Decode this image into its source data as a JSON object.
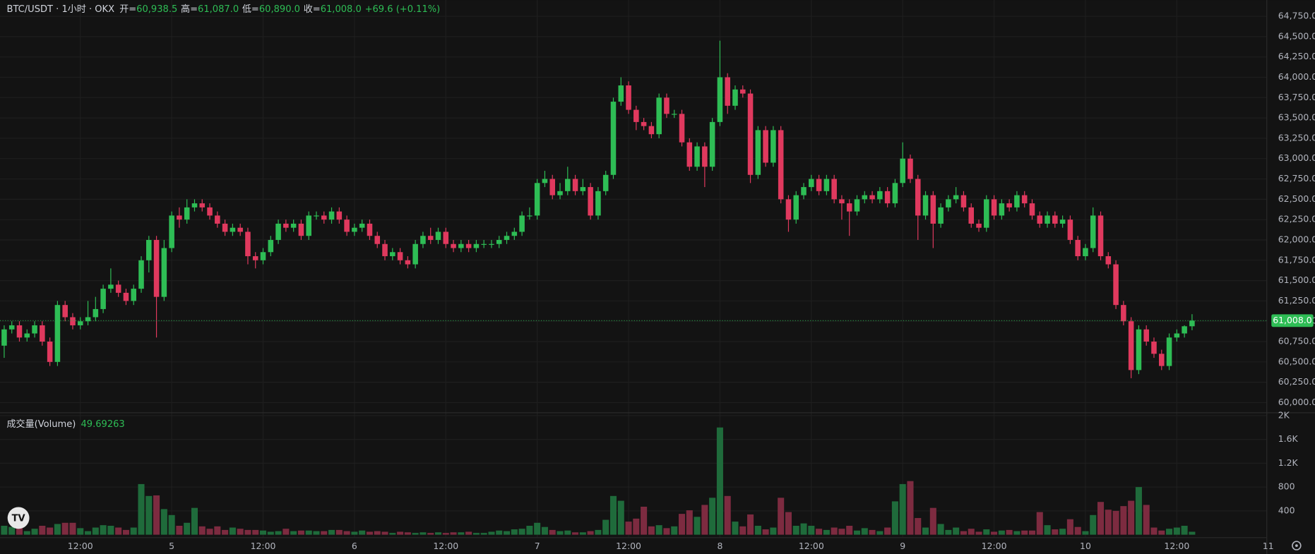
{
  "chart_data": {
    "type": "candlestick",
    "title": "BTC/USDT · 1小时 · OKX",
    "ohlc_legend": [
      {
        "label": "开=",
        "value": "60,938.5"
      },
      {
        "label": "高=",
        "value": "61,087.0"
      },
      {
        "label": "低=",
        "value": "60,890.0"
      },
      {
        "label": "收=",
        "value": "61,008.0"
      }
    ],
    "change": "+69.6 (+0.11%)",
    "last_price_label": "61,008.0",
    "up_color": "#2ebd55",
    "down_color": "#e0395e",
    "volume_up_color": "#1f6b3b",
    "volume_down_color": "#7d2b40",
    "grid": true,
    "xlim": [
      -0.55,
      166.2
    ],
    "xticks": [
      {
        "value": 10,
        "label": "12:00"
      },
      {
        "value": 22,
        "label": "5"
      },
      {
        "value": 34,
        "label": "12:00"
      },
      {
        "value": 46,
        "label": "6"
      },
      {
        "value": 58,
        "label": "12:00"
      },
      {
        "value": 70,
        "label": "7"
      },
      {
        "value": 82,
        "label": "12:00"
      },
      {
        "value": 94,
        "label": "8"
      },
      {
        "value": 106,
        "label": "12:00"
      },
      {
        "value": 118,
        "label": "9"
      },
      {
        "value": 130,
        "label": "12:00"
      },
      {
        "value": 142,
        "label": "10"
      },
      {
        "value": 154,
        "label": "12:00"
      },
      {
        "value": 166,
        "label": "11"
      }
    ],
    "ylim": [
      59880,
      64950
    ],
    "yticks": [
      {
        "value": 60000,
        "label": "60,000.0"
      },
      {
        "value": 60250,
        "label": "60,250.0"
      },
      {
        "value": 60500,
        "label": "60,500.0"
      },
      {
        "value": 60750,
        "label": "60,750.0"
      },
      {
        "value": 61000,
        "label": "61,000.0"
      },
      {
        "value": 61250,
        "label": "61,250.0"
      },
      {
        "value": 61500,
        "label": "61,500.0"
      },
      {
        "value": 61750,
        "label": "61,750.0"
      },
      {
        "value": 62000,
        "label": "62,000.0"
      },
      {
        "value": 62250,
        "label": "62,250.0"
      },
      {
        "value": 62500,
        "label": "62,500.0"
      },
      {
        "value": 62750,
        "label": "62,750.0"
      },
      {
        "value": 63000,
        "label": "63,000.0"
      },
      {
        "value": 63250,
        "label": "63,250.0"
      },
      {
        "value": 63500,
        "label": "63,500.0"
      },
      {
        "value": 63750,
        "label": "63,750.0"
      },
      {
        "value": 64000,
        "label": "64,000.0"
      },
      {
        "value": 64250,
        "label": "64,250.0"
      },
      {
        "value": 64500,
        "label": "64,500.0"
      },
      {
        "value": 64750,
        "label": "64,750.0"
      }
    ],
    "open": [
      60700,
      60900,
      60950,
      60800,
      60850,
      60950,
      60750,
      60500,
      61200,
      61050,
      60950,
      61000,
      61050,
      61150,
      61400,
      61450,
      61350,
      61250,
      61400,
      61750,
      62000,
      61300,
      61900,
      62300,
      62250,
      62400,
      62450,
      62400,
      62300,
      62200,
      62100,
      62150,
      62100,
      61800,
      61750,
      61850,
      62000,
      62200,
      62150,
      62200,
      62050,
      62300,
      62300,
      62250,
      62350,
      62250,
      62100,
      62150,
      62200,
      62050,
      61950,
      61800,
      61850,
      61750,
      61700,
      61950,
      62050,
      62000,
      62100,
      61950,
      61900,
      61950,
      61900,
      61950,
      61950,
      61950,
      62000,
      62050,
      62100,
      62300,
      62300,
      62700,
      62750,
      62550,
      62600,
      62750,
      62600,
      62650,
      62300,
      62600,
      62800,
      63700,
      63900,
      63600,
      63450,
      63400,
      63300,
      63750,
      63550,
      63550,
      63200,
      62900,
      63150,
      62900,
      63450,
      64000,
      63650,
      63850,
      63800,
      62800,
      63350,
      62950,
      63350,
      62500,
      62250,
      62550,
      62650,
      62750,
      62600,
      62750,
      62500,
      62450,
      62350,
      62500,
      62550,
      62500,
      62600,
      62450,
      62700,
      63000,
      62750,
      62300,
      62550,
      62200,
      62400,
      62500,
      62550,
      62400,
      62200,
      62150,
      62500,
      62300,
      62450,
      62400,
      62550,
      62450,
      62300,
      62200,
      62300,
      62200,
      62250,
      62000,
      61800,
      61900,
      62300,
      61800,
      61700,
      61200,
      61000,
      60400,
      60900,
      60750,
      60600,
      60450,
      60800,
      60850,
      60938.5
    ],
    "high": [
      60950,
      61000,
      61000,
      60900,
      61000,
      61000,
      60800,
      61250,
      61250,
      61100,
      61050,
      61250,
      61300,
      61450,
      61650,
      61500,
      61400,
      61450,
      61800,
      62050,
      62050,
      62000,
      62350,
      62400,
      62500,
      62500,
      62500,
      62450,
      62350,
      62250,
      62200,
      62200,
      62150,
      61850,
      61900,
      62050,
      62250,
      62250,
      62250,
      62250,
      62350,
      62350,
      62350,
      62400,
      62400,
      62300,
      62200,
      62250,
      62250,
      62100,
      62000,
      61900,
      61900,
      61800,
      62000,
      62100,
      62150,
      62150,
      62150,
      62000,
      62000,
      62000,
      62000,
      62000,
      62000,
      62050,
      62100,
      62150,
      62350,
      62400,
      62750,
      62850,
      62800,
      62700,
      62900,
      62800,
      62750,
      62700,
      62650,
      62850,
      63750,
      64000,
      63950,
      63650,
      63500,
      63450,
      63800,
      63800,
      63600,
      63600,
      63250,
      63200,
      63200,
      63500,
      64450,
      64050,
      63900,
      63900,
      63850,
      63400,
      63400,
      63400,
      63400,
      62550,
      62600,
      62700,
      62800,
      62800,
      62800,
      62800,
      62550,
      62500,
      62550,
      62600,
      62600,
      62650,
      62650,
      62750,
      63200,
      63050,
      62800,
      62600,
      62600,
      62450,
      62550,
      62650,
      62600,
      62450,
      62250,
      62550,
      62550,
      62500,
      62500,
      62600,
      62600,
      62500,
      62350,
      62350,
      62350,
      62300,
      62300,
      62050,
      61950,
      62400,
      62350,
      61850,
      61750,
      61250,
      61050,
      60950,
      60950,
      60800,
      60650,
      60850,
      60900,
      60950,
      61087
    ],
    "low": [
      60550,
      60850,
      60750,
      60750,
      60800,
      60700,
      60450,
      60450,
      61000,
      60900,
      60900,
      60950,
      61000,
      61100,
      61350,
      61300,
      61200,
      61200,
      61350,
      61600,
      60800,
      61250,
      61850,
      62150,
      62200,
      62350,
      62350,
      62250,
      62150,
      62050,
      62050,
      62050,
      61700,
      61650,
      61700,
      61800,
      61950,
      62100,
      62100,
      62000,
      62000,
      62250,
      62200,
      62200,
      62200,
      62050,
      62050,
      62100,
      62000,
      61900,
      61750,
      61750,
      61700,
      61650,
      61650,
      61900,
      61950,
      61950,
      61900,
      61850,
      61850,
      61850,
      61850,
      61900,
      61900,
      61900,
      61950,
      62000,
      62050,
      62250,
      62250,
      62650,
      62500,
      62500,
      62550,
      62550,
      62550,
      62250,
      62250,
      62550,
      62750,
      63650,
      63550,
      63350,
      63350,
      63250,
      63250,
      63500,
      63500,
      63150,
      62850,
      62850,
      62650,
      62850,
      63400,
      63550,
      63600,
      63750,
      62700,
      62750,
      62900,
      62900,
      62450,
      62100,
      62200,
      62500,
      62600,
      62550,
      62550,
      62450,
      62250,
      62050,
      62300,
      62450,
      62450,
      62450,
      62400,
      62400,
      62650,
      62700,
      62000,
      62250,
      61900,
      62150,
      62350,
      62450,
      62350,
      62150,
      62100,
      62100,
      62250,
      62250,
      62350,
      62350,
      62400,
      62250,
      62150,
      62150,
      62150,
      62150,
      61950,
      61750,
      61750,
      61850,
      61750,
      61650,
      61150,
      60950,
      60300,
      60350,
      60700,
      60550,
      60400,
      60400,
      60750,
      60800,
      60890
    ],
    "close": [
      60900,
      60950,
      60800,
      60850,
      60950,
      60750,
      60500,
      61200,
      61050,
      60950,
      61000,
      61050,
      61150,
      61400,
      61450,
      61350,
      61250,
      61400,
      61750,
      62000,
      61300,
      61900,
      62300,
      62250,
      62400,
      62450,
      62400,
      62300,
      62200,
      62100,
      62150,
      62100,
      61800,
      61750,
      61850,
      62000,
      62200,
      62150,
      62200,
      62050,
      62300,
      62300,
      62250,
      62350,
      62250,
      62100,
      62150,
      62200,
      62050,
      61950,
      61800,
      61850,
      61750,
      61700,
      61950,
      62050,
      62000,
      62100,
      61950,
      61900,
      61950,
      61900,
      61950,
      61950,
      61950,
      62000,
      62050,
      62100,
      62300,
      62300,
      62700,
      62750,
      62550,
      62600,
      62750,
      62600,
      62650,
      62300,
      62600,
      62800,
      63700,
      63900,
      63600,
      63450,
      63400,
      63300,
      63750,
      63550,
      63550,
      63200,
      62900,
      63150,
      62900,
      63450,
      64000,
      63650,
      63850,
      63800,
      62800,
      63350,
      62950,
      63350,
      62500,
      62250,
      62550,
      62650,
      62750,
      62600,
      62750,
      62500,
      62450,
      62350,
      62500,
      62550,
      62500,
      62600,
      62450,
      62700,
      63000,
      62750,
      62300,
      62550,
      62200,
      62400,
      62500,
      62550,
      62400,
      62200,
      62150,
      62500,
      62300,
      62450,
      62400,
      62550,
      62450,
      62300,
      62200,
      62300,
      62200,
      62250,
      62000,
      61800,
      61900,
      62300,
      61800,
      61700,
      61200,
      61000,
      60400,
      60900,
      60750,
      60600,
      60450,
      60800,
      60850,
      60938.5,
      61008
    ],
    "volume": {
      "name": "成交量(Volume)",
      "value_label": "49.69263",
      "ylim": [
        0,
        2040
      ],
      "yticks": [
        400,
        800,
        {
          "value": 1200,
          "label": "1.2K"
        },
        {
          "value": 1600,
          "label": "1.6K"
        },
        {
          "value": 2000,
          "label": "2K"
        }
      ],
      "values": [
        150,
        130,
        120,
        60,
        100,
        150,
        120,
        180,
        200,
        200,
        110,
        60,
        120,
        160,
        150,
        120,
        80,
        120,
        850,
        650,
        660,
        430,
        330,
        150,
        200,
        450,
        140,
        100,
        140,
        80,
        120,
        100,
        80,
        80,
        70,
        50,
        60,
        100,
        60,
        70,
        70,
        60,
        60,
        80,
        80,
        60,
        50,
        70,
        50,
        60,
        50,
        30,
        50,
        40,
        30,
        40,
        30,
        40,
        30,
        40,
        40,
        50,
        30,
        30,
        50,
        70,
        60,
        90,
        100,
        150,
        200,
        130,
        80,
        60,
        70,
        40,
        40,
        60,
        80,
        250,
        650,
        570,
        220,
        270,
        470,
        140,
        160,
        110,
        140,
        350,
        410,
        300,
        500,
        620,
        1800,
        650,
        220,
        140,
        340,
        150,
        90,
        120,
        620,
        380,
        150,
        190,
        150,
        100,
        80,
        120,
        100,
        150,
        70,
        110,
        80,
        60,
        120,
        560,
        850,
        900,
        280,
        120,
        450,
        180,
        80,
        120,
        60,
        100,
        50,
        90,
        50,
        70,
        80,
        60,
        70,
        70,
        380,
        160,
        90,
        100,
        260,
        130,
        60,
        330,
        550,
        420,
        400,
        480,
        570,
        800,
        500,
        120,
        70,
        100,
        120,
        150,
        49.69263
      ]
    }
  }
}
